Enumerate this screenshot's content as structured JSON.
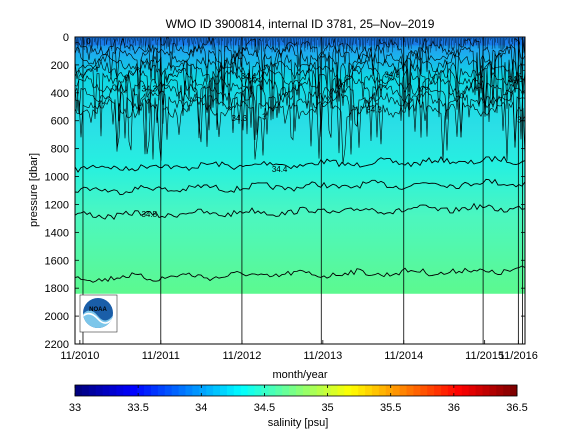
{
  "chart_data": {
    "type": "heatmap",
    "title": "WMO ID 3900814, internal ID 3781, 25–Nov–2019",
    "xlabel": "month/year",
    "ylabel": "pressure [dbar]",
    "x_range": [
      "2010-10-10",
      "2016-05-01"
    ],
    "x_tick_labels": [
      "11/2010",
      "11/2011",
      "11/2012",
      "11/2013",
      "11/2014",
      "11/2015",
      "11/2016"
    ],
    "y_range": [
      0,
      2200
    ],
    "y_reversed": true,
    "y_ticks": [
      0,
      200,
      400,
      600,
      800,
      1000,
      1200,
      1400,
      1600,
      1800,
      2000,
      2200
    ],
    "data_bottom_pressure": 1840,
    "profile_vertical_lines": [
      "2010-11-15",
      "2011-11-01",
      "2012-11-01",
      "2013-10-25",
      "2014-11-01",
      "2015-10-25",
      "2016-04-01",
      "2016-04-20"
    ],
    "contours": [
      {
        "level": 34.4,
        "pressure": 940
      },
      {
        "level": null,
        "pressure": 1100
      },
      {
        "level": 34.5,
        "pressure": 1280
      },
      {
        "level": null,
        "pressure": 1730
      }
    ],
    "contour_labels": [
      {
        "text": "0",
        "date": "2010-12-10",
        "pressure": 30
      },
      {
        "text": "0",
        "date": "2011-06-01",
        "pressure": 290
      },
      {
        "text": "34.3",
        "date": "2011-09-10",
        "pressure": 370
      },
      {
        "text": "34.3",
        "date": "2012-10-20",
        "pressure": 580
      },
      {
        "text": "3",
        "date": "2013-02-10",
        "pressure": 570
      },
      {
        "text": "34.4",
        "date": "2012-12-01",
        "pressure": 280
      },
      {
        "text": "34.3",
        "date": "2014-09-10",
        "pressure": 270
      },
      {
        "text": "34.3",
        "date": "2014-06-20",
        "pressure": 520
      },
      {
        "text": "34.4",
        "date": "2013-04-20",
        "pressure": 945
      },
      {
        "text": "34.5",
        "date": "2011-09-10",
        "pressure": 1270
      },
      {
        "text": "34.5",
        "date": "2016-03-20",
        "pressure": 300
      },
      {
        "text": "34.3",
        "date": "2016-05-01",
        "pressure": 590
      }
    ],
    "colorbar": {
      "label": "salinity [psu]",
      "range": [
        33,
        36.5
      ],
      "ticks": [
        33,
        33.5,
        34,
        34.5,
        35,
        35.5,
        36,
        36.5
      ],
      "colormap": "jet"
    },
    "grid": false,
    "legend": "none"
  },
  "logo": {
    "text": "NOAA",
    "colors": [
      "#1a5ea8",
      "#7cc6ea",
      "#ffffff"
    ]
  }
}
